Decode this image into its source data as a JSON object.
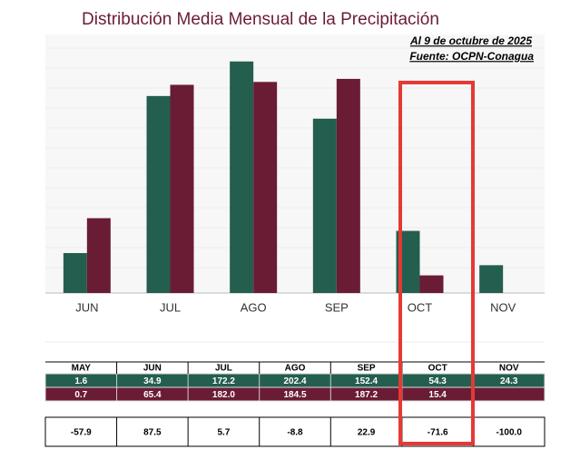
{
  "chart_data": {
    "type": "bar",
    "title": "Distribución Media Mensual de la Precipitación",
    "annotations": [
      "Al 9 de octubre de 2025",
      "Fuente: OCPN-Conagua"
    ],
    "categories": [
      "JUN",
      "JUL",
      "AGO",
      "SEP",
      "OCT",
      "NOV"
    ],
    "series": [
      {
        "color": "#245e4f",
        "values": [
          34.9,
          172.2,
          202.4,
          152.4,
          54.3,
          24.3
        ]
      },
      {
        "color": "#6b1c35",
        "values": [
          65.4,
          182.0,
          184.5,
          187.2,
          15.4,
          null
        ]
      }
    ],
    "ylim": [
      0,
      226
    ]
  },
  "table": {
    "header": [
      "MAY",
      "JUN",
      "JUL",
      "AGO",
      "SEP",
      "OCT",
      "NOV"
    ],
    "rows": [
      [
        "1.6",
        "34.9",
        "172.2",
        "202.4",
        "152.4",
        "54.3",
        "24.3"
      ],
      [
        "0.7",
        "65.4",
        "182.0",
        "184.5",
        "187.2",
        "15.4",
        null
      ],
      [
        "-57.9",
        "87.5",
        "5.7",
        "-8.8",
        "22.9",
        "-71.6",
        "-100.0"
      ]
    ]
  }
}
